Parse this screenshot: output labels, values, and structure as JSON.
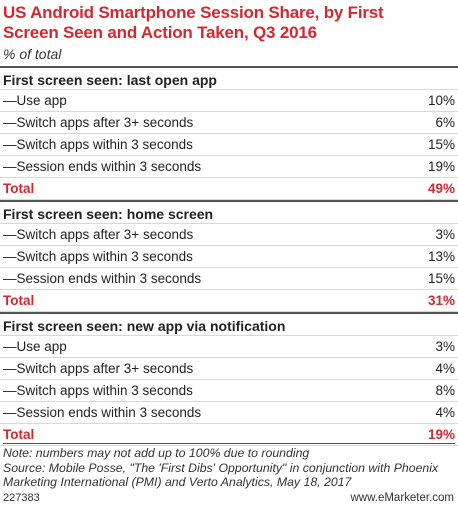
{
  "chart_data": {
    "type": "table",
    "title": "US Android Smartphone Session Share, by First Screen Seen and Action Taken, Q3 2016",
    "subtitle": "% of total",
    "sections": [
      {
        "header": "First screen seen: last open app",
        "rows": [
          {
            "label": "—Use app",
            "value": "10%"
          },
          {
            "label": "—Switch apps after 3+ seconds",
            "value": "6%"
          },
          {
            "label": "—Switch apps within 3 seconds",
            "value": "15%"
          },
          {
            "label": "—Session ends within 3 seconds",
            "value": "19%"
          }
        ],
        "total": {
          "label": "Total",
          "value": "49%"
        }
      },
      {
        "header": "First screen seen: home screen",
        "rows": [
          {
            "label": "—Switch apps after 3+ seconds",
            "value": "3%"
          },
          {
            "label": "—Switch apps within 3 seconds",
            "value": "13%"
          },
          {
            "label": "—Session ends within 3 seconds",
            "value": "15%"
          }
        ],
        "total": {
          "label": "Total",
          "value": "31%"
        }
      },
      {
        "header": "First screen seen: new app via notification",
        "rows": [
          {
            "label": "—Use app",
            "value": "3%"
          },
          {
            "label": "—Switch apps after 3+ seconds",
            "value": "4%"
          },
          {
            "label": "—Switch apps within 3 seconds",
            "value": "8%"
          },
          {
            "label": "—Session ends within 3 seconds",
            "value": "4%"
          }
        ],
        "total": {
          "label": "Total",
          "value": "19%"
        }
      }
    ],
    "note": "Note: numbers may not add up to 100% due to rounding",
    "source": "Source: Mobile Posse, \"The 'First Dibs' Opportunity\" in conjunction with Phoenix Marketing International (PMI) and Verto Analytics, May 18, 2017",
    "chart_id": "227383",
    "brand": "www.eMarketer.com"
  },
  "colors": {
    "accent": "#d8262e",
    "text": "#222222",
    "rule": "#d8d8d8"
  }
}
